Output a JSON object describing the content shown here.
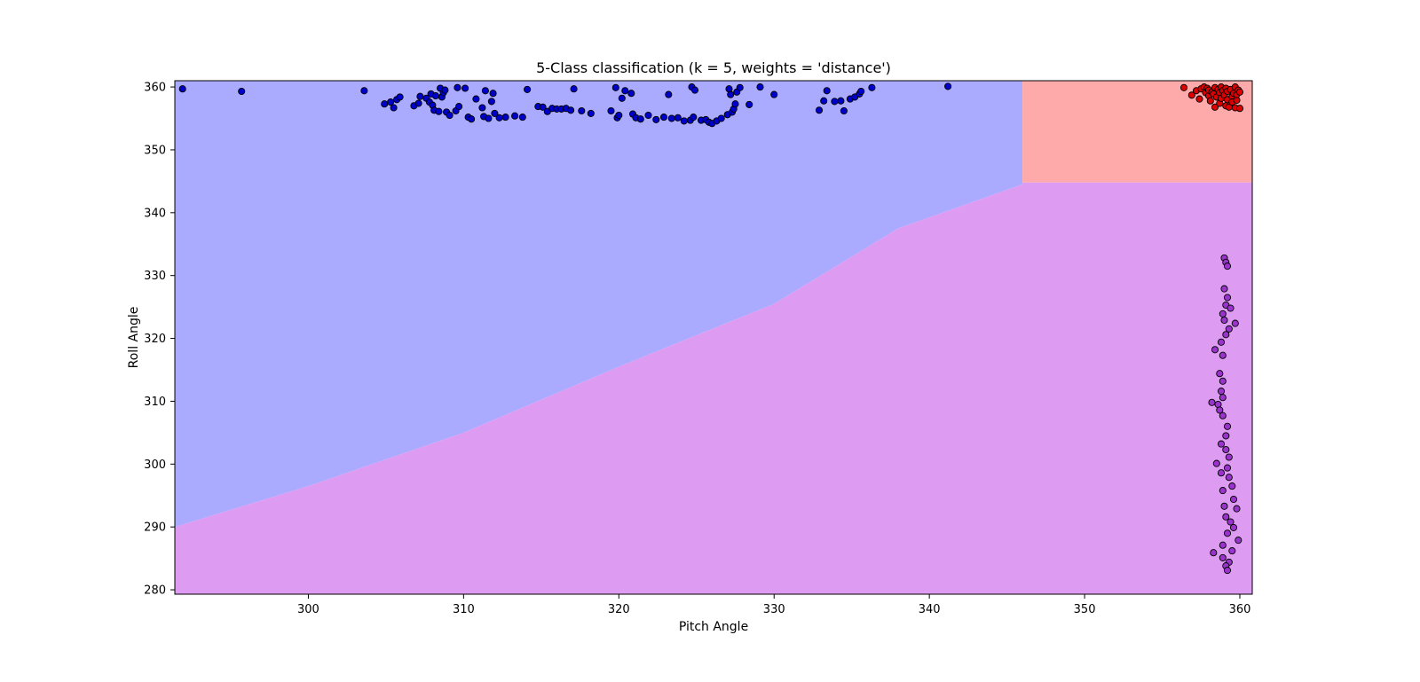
{
  "chart_data": {
    "type": "scatter",
    "title": "5-Class classification (k = 5, weights = 'distance')",
    "xlabel": "Pitch Angle",
    "ylabel": "Roll Angle",
    "xlim": [
      291.4,
      360.8
    ],
    "ylim": [
      279.3,
      361.0
    ],
    "x_ticks": [
      300,
      310,
      320,
      330,
      340,
      350,
      360
    ],
    "y_ticks": [
      280,
      290,
      300,
      310,
      320,
      330,
      340,
      350,
      360
    ],
    "grid": false,
    "legend": "none",
    "regions": [
      {
        "name": "blue-class-region",
        "color": "#aaaaff",
        "polygon": [
          [
            291.4,
            361.0
          ],
          [
            346.0,
            361.0
          ],
          [
            346.0,
            344.5
          ],
          [
            338.0,
            337.5
          ],
          [
            330.0,
            325.5
          ],
          [
            320.0,
            315.5
          ],
          [
            310.0,
            305.0
          ],
          [
            300.0,
            296.5
          ],
          [
            291.4,
            290.0
          ]
        ]
      },
      {
        "name": "red-class-region",
        "color": "#ffaaaa",
        "polygon": [
          [
            346.0,
            361.0
          ],
          [
            360.8,
            361.0
          ],
          [
            360.8,
            344.8
          ],
          [
            346.0,
            344.8
          ]
        ]
      },
      {
        "name": "purple-class-region",
        "color": "#dd9cf2",
        "polygon": [
          [
            291.4,
            290.0
          ],
          [
            300.0,
            296.5
          ],
          [
            310.0,
            305.0
          ],
          [
            320.0,
            315.5
          ],
          [
            330.0,
            325.5
          ],
          [
            338.0,
            337.5
          ],
          [
            346.0,
            344.5
          ],
          [
            346.0,
            344.8
          ],
          [
            360.8,
            344.8
          ],
          [
            360.8,
            279.3
          ],
          [
            291.4,
            279.3
          ]
        ]
      }
    ],
    "series": [
      {
        "color": "#0000cc",
        "points": [
          [
            291.9,
            359.7
          ],
          [
            295.7,
            359.3
          ],
          [
            303.6,
            359.4
          ],
          [
            304.9,
            357.3
          ],
          [
            305.3,
            357.6
          ],
          [
            305.5,
            356.7
          ],
          [
            305.7,
            358.0
          ],
          [
            305.9,
            358.4
          ],
          [
            306.8,
            357.0
          ],
          [
            307.1,
            357.4
          ],
          [
            307.2,
            358.5
          ],
          [
            307.6,
            358.2
          ],
          [
            307.8,
            357.6
          ],
          [
            307.9,
            358.9
          ],
          [
            308.0,
            357.1
          ],
          [
            308.1,
            356.3
          ],
          [
            308.2,
            358.6
          ],
          [
            308.4,
            356.1
          ],
          [
            308.5,
            359.8
          ],
          [
            308.6,
            358.4
          ],
          [
            308.7,
            359.1
          ],
          [
            308.8,
            359.5
          ],
          [
            308.9,
            356.0
          ],
          [
            309.1,
            355.5
          ],
          [
            309.5,
            356.2
          ],
          [
            309.6,
            359.9
          ],
          [
            309.7,
            356.9
          ],
          [
            310.1,
            359.8
          ],
          [
            310.3,
            355.2
          ],
          [
            310.5,
            354.9
          ],
          [
            310.8,
            358.1
          ],
          [
            311.2,
            356.7
          ],
          [
            311.3,
            355.3
          ],
          [
            311.4,
            359.4
          ],
          [
            311.6,
            355.0
          ],
          [
            311.8,
            357.7
          ],
          [
            311.9,
            359.0
          ],
          [
            312.0,
            355.8
          ],
          [
            312.3,
            355.1
          ],
          [
            312.7,
            355.2
          ],
          [
            313.3,
            355.4
          ],
          [
            313.8,
            355.2
          ],
          [
            314.1,
            359.6
          ],
          [
            314.8,
            356.9
          ],
          [
            315.1,
            356.8
          ],
          [
            315.4,
            356.1
          ],
          [
            315.7,
            356.6
          ],
          [
            316.0,
            356.5
          ],
          [
            316.3,
            356.5
          ],
          [
            316.6,
            356.6
          ],
          [
            316.9,
            356.3
          ],
          [
            317.1,
            359.7
          ],
          [
            317.6,
            356.2
          ],
          [
            318.2,
            355.8
          ],
          [
            319.5,
            356.2
          ],
          [
            319.8,
            359.9
          ],
          [
            319.9,
            355.1
          ],
          [
            320.0,
            355.5
          ],
          [
            320.2,
            358.2
          ],
          [
            320.4,
            359.4
          ],
          [
            320.8,
            359.0
          ],
          [
            320.9,
            355.7
          ],
          [
            321.1,
            355.1
          ],
          [
            321.4,
            354.9
          ],
          [
            321.9,
            355.5
          ],
          [
            322.4,
            354.8
          ],
          [
            322.9,
            355.2
          ],
          [
            323.2,
            358.8
          ],
          [
            323.4,
            355.0
          ],
          [
            323.8,
            355.1
          ],
          [
            324.2,
            354.6
          ],
          [
            324.6,
            354.7
          ],
          [
            324.7,
            360.0
          ],
          [
            324.8,
            355.2
          ],
          [
            324.9,
            359.5
          ],
          [
            325.3,
            354.7
          ],
          [
            325.6,
            354.8
          ],
          [
            325.8,
            354.4
          ],
          [
            326.0,
            354.2
          ],
          [
            326.3,
            354.6
          ],
          [
            326.6,
            355.0
          ],
          [
            327.0,
            355.6
          ],
          [
            327.1,
            359.7
          ],
          [
            327.2,
            358.8
          ],
          [
            327.3,
            356.0
          ],
          [
            327.4,
            356.5
          ],
          [
            327.5,
            357.3
          ],
          [
            327.6,
            359.2
          ],
          [
            327.8,
            359.9
          ],
          [
            328.4,
            357.2
          ],
          [
            329.1,
            360.0
          ],
          [
            330.0,
            358.8
          ],
          [
            332.9,
            356.3
          ],
          [
            333.2,
            357.8
          ],
          [
            333.4,
            359.4
          ],
          [
            333.9,
            357.7
          ],
          [
            334.3,
            357.8
          ],
          [
            334.5,
            356.2
          ],
          [
            334.9,
            358.1
          ],
          [
            335.2,
            358.4
          ],
          [
            335.5,
            358.9
          ],
          [
            335.6,
            359.3
          ],
          [
            336.3,
            359.9
          ],
          [
            341.2,
            360.1
          ]
        ]
      },
      {
        "color": "#dd0000",
        "points": [
          [
            356.4,
            359.9
          ],
          [
            356.9,
            358.7
          ],
          [
            357.2,
            359.4
          ],
          [
            357.4,
            358.1
          ],
          [
            357.5,
            359.7
          ],
          [
            357.7,
            360.0
          ],
          [
            357.8,
            359.1
          ],
          [
            357.9,
            359.8
          ],
          [
            358.0,
            358.6
          ],
          [
            358.0,
            359.5
          ],
          [
            358.1,
            357.8
          ],
          [
            358.2,
            359.2
          ],
          [
            358.3,
            358.9
          ],
          [
            358.4,
            359.9
          ],
          [
            358.4,
            356.8
          ],
          [
            358.5,
            358.4
          ],
          [
            358.6,
            359.6
          ],
          [
            358.7,
            357.4
          ],
          [
            358.7,
            359.1
          ],
          [
            358.8,
            358.2
          ],
          [
            358.8,
            360.0
          ],
          [
            358.9,
            359.4
          ],
          [
            359.0,
            358.7
          ],
          [
            359.1,
            357.0
          ],
          [
            359.1,
            359.8
          ],
          [
            359.2,
            358.0
          ],
          [
            359.2,
            359.3
          ],
          [
            359.3,
            356.8
          ],
          [
            359.4,
            359.6
          ],
          [
            359.5,
            358.5
          ],
          [
            359.5,
            357.6
          ],
          [
            359.6,
            359.0
          ],
          [
            359.7,
            356.7
          ],
          [
            359.7,
            360.0
          ],
          [
            359.8,
            357.9
          ],
          [
            359.8,
            358.8
          ],
          [
            359.9,
            359.5
          ],
          [
            360.0,
            356.6
          ],
          [
            360.0,
            359.2
          ]
        ]
      },
      {
        "color": "#9933cc",
        "points": [
          [
            359.0,
            332.8
          ],
          [
            359.1,
            332.1
          ],
          [
            359.2,
            331.5
          ],
          [
            359.0,
            327.9
          ],
          [
            359.2,
            326.5
          ],
          [
            359.1,
            325.3
          ],
          [
            359.4,
            324.8
          ],
          [
            358.9,
            323.9
          ],
          [
            359.0,
            322.9
          ],
          [
            359.7,
            322.4
          ],
          [
            359.3,
            321.5
          ],
          [
            359.1,
            320.6
          ],
          [
            358.8,
            319.4
          ],
          [
            358.4,
            318.2
          ],
          [
            358.9,
            317.3
          ],
          [
            358.7,
            314.4
          ],
          [
            358.9,
            313.2
          ],
          [
            358.8,
            311.6
          ],
          [
            358.9,
            310.6
          ],
          [
            358.2,
            309.8
          ],
          [
            358.6,
            309.5
          ],
          [
            358.7,
            308.6
          ],
          [
            358.9,
            307.7
          ],
          [
            359.2,
            306.0
          ],
          [
            359.1,
            304.5
          ],
          [
            358.8,
            303.2
          ],
          [
            359.1,
            302.3
          ],
          [
            359.3,
            301.1
          ],
          [
            358.5,
            300.1
          ],
          [
            359.2,
            299.4
          ],
          [
            358.8,
            298.6
          ],
          [
            359.3,
            297.9
          ],
          [
            359.5,
            296.5
          ],
          [
            358.9,
            295.8
          ],
          [
            359.6,
            294.4
          ],
          [
            359.0,
            293.3
          ],
          [
            359.8,
            292.9
          ],
          [
            359.1,
            291.6
          ],
          [
            359.4,
            290.8
          ],
          [
            359.6,
            289.9
          ],
          [
            359.2,
            289.0
          ],
          [
            359.9,
            287.9
          ],
          [
            358.9,
            287.1
          ],
          [
            359.5,
            286.2
          ],
          [
            358.3,
            285.9
          ],
          [
            358.9,
            285.1
          ],
          [
            359.3,
            284.4
          ],
          [
            359.1,
            283.8
          ],
          [
            359.2,
            283.1
          ]
        ]
      }
    ]
  }
}
